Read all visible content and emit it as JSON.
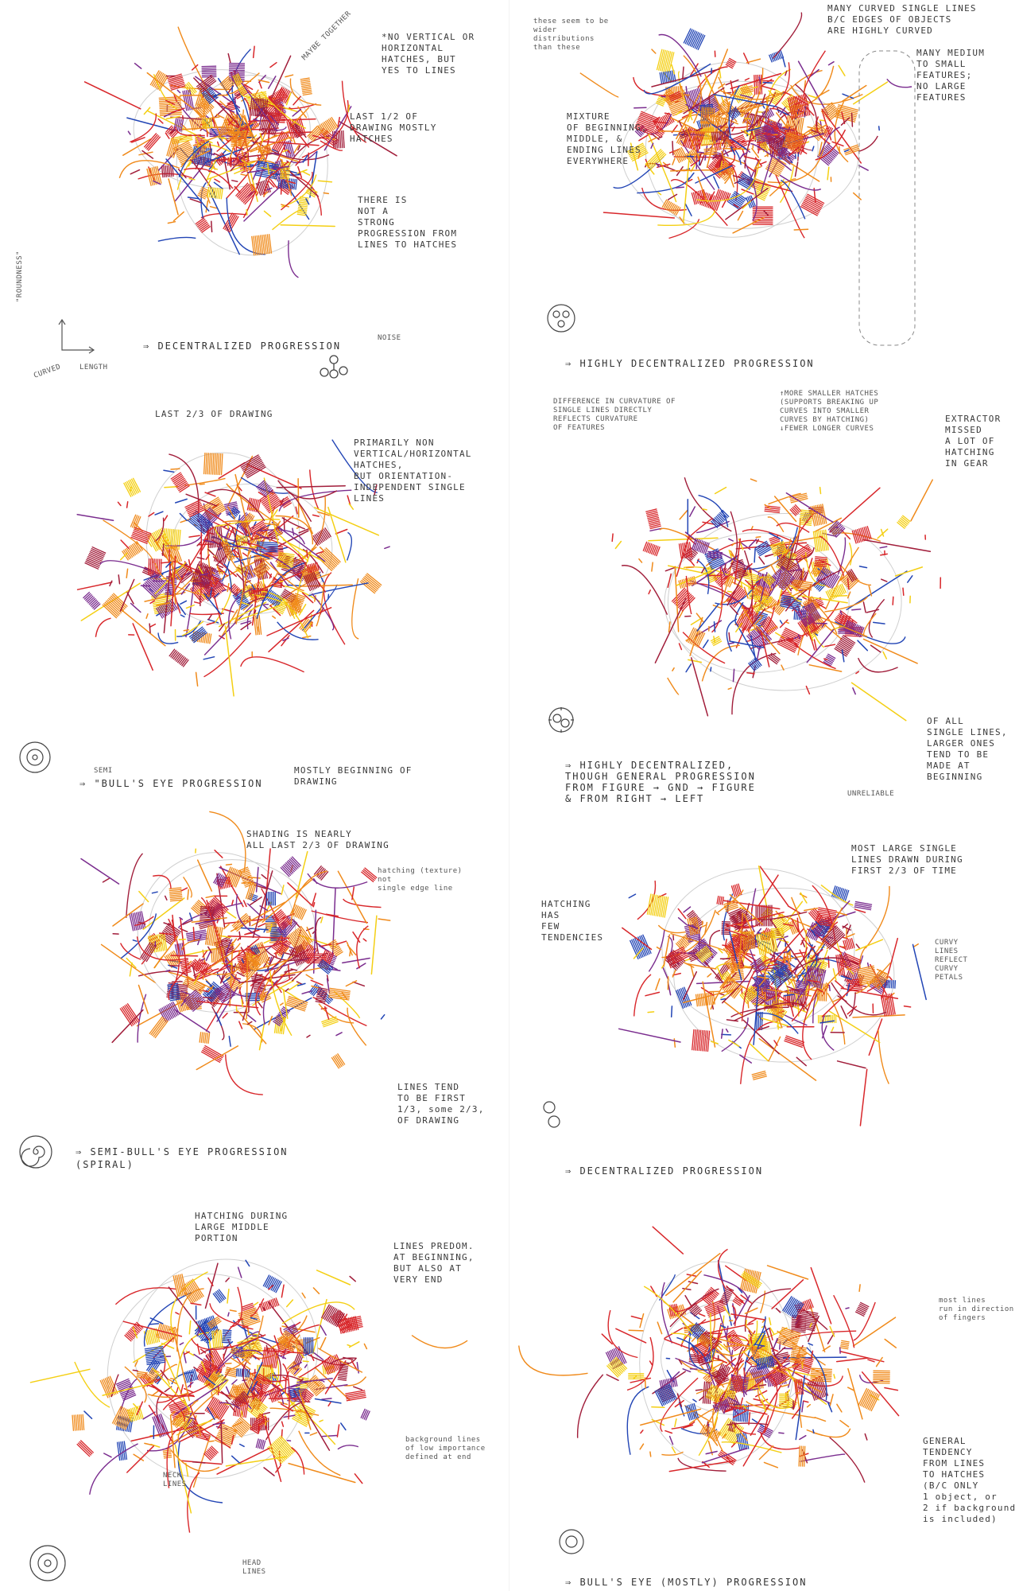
{
  "colors": {
    "red": "#d8262a",
    "yellow": "#f4cf13",
    "orange": "#f08a1a",
    "blue": "#2245b5",
    "purple": "#7a2c8e",
    "darkred": "#a11d3a",
    "pencil": "#8a8a8a"
  },
  "panels": [
    {
      "id": "p1",
      "caption": "⇒ DECENTRALIZED PROGRESSION",
      "notes": [
        "*NO VERTICAL OR\nHORIZONTAL\nHATCHES, BUT\nYES TO LINES",
        "MAYBE TOGETHER",
        "LAST 1/2 OF\nDRAWING MOSTLY\nHATCHES",
        "THERE IS\nNOT A\nSTRONG\nPROGRESSION FROM\nLINES TO HATCHES",
        "NOISE",
        "\"ROUNDNESS\"",
        "LENGTH",
        "CURVED"
      ],
      "glyph": "progression-icon"
    },
    {
      "id": "p2",
      "caption": "⇒ HIGHLY DECENTRALIZED PROGRESSION",
      "notes": [
        "these seem to be\nwider\ndistributions\nthan these",
        "MANY CURVED SINGLE LINES\nB/C EDGES OF OBJECTS\nARE HIGHLY CURVED",
        "MANY MEDIUM\nTO SMALL\nFEATURES;\nNO LARGE\nFEATURES",
        "MIXTURE\nOF BEGINNING,\nMIDDLE, &\nENDING LINES\nEVERYWHERE"
      ],
      "glyph": "cluster-icon"
    },
    {
      "id": "p3",
      "caption": "⇒ \"BULL'S EYE PROGRESSION",
      "notes": [
        "LAST 2/3 OF DRAWING",
        "PRIMARILY NON\nVERTICAL/HORIZONTAL\nHATCHES,\nBUT ORIENTATION-\nINDEPENDENT SINGLE\nLINES",
        "SEMI",
        "MOSTLY BEGINNING OF\nDRAWING"
      ],
      "glyph": "bullseye-icon"
    },
    {
      "id": "p4",
      "caption": "⇒ HIGHLY DECENTRALIZED,\nTHOUGH GENERAL PROGRESSION\nFROM FIGURE → GND → FIGURE\n& FROM RIGHT → LEFT",
      "notes": [
        "DIFFERENCE IN CURVATURE OF\nSINGLE LINES DIRECTLY\nREFLECTS CURVATURE\nOF FEATURES",
        "↑MORE SMALLER HATCHES\n(SUPPORTS BREAKING UP\nCURVES INTO SMALLER\nCURVES BY HATCHING)\n↓FEWER LONGER CURVES",
        "EXTRACTOR\nMISSED\nA LOT OF\nHATCHING\nIN GEAR",
        "OF ALL\nSINGLE LINES,\nLARGER ONES\nTEND TO BE\nMADE AT\nBEGINNING",
        "UNRELIABLE"
      ],
      "glyph": "gear-icon"
    },
    {
      "id": "p5",
      "caption": "⇒ SEMI-BULL'S EYE PROGRESSION\n(SPIRAL)",
      "notes": [
        "SHADING IS NEARLY\nALL LAST 2/3 OF DRAWING",
        "hatching (texture)\nnot\nsingle edge line",
        "LINES TEND\nTO BE FIRST\n1/3, some 2/3,\nOF DRAWING"
      ],
      "glyph": "spiral-icon"
    },
    {
      "id": "p6",
      "caption": "⇒ DECENTRALIZED PROGRESSION",
      "notes": [
        "HATCHING\nHAS\nFEW\nTENDENCIES",
        "MOST LARGE SINGLE\nLINES DRAWN DURING\nFIRST 2/3 OF TIME",
        "CURVY\nLINES\nREFLECT\nCURVY\nPETALS"
      ],
      "glyph": "stack-icon"
    },
    {
      "id": "p7",
      "caption": "",
      "notes": [
        "HATCHING DURING\nLARGE MIDDLE\nPORTION",
        "LINES PREDOM.\nAT BEGINNING,\nBUT ALSO AT\nVERY END",
        "background lines\nof low importance\ndefined at end",
        "NECK\nLINES",
        "HEAD\nLINES"
      ],
      "glyph": "bullseye-icon"
    },
    {
      "id": "p8",
      "caption": "⇒ BULL'S EYE (MOSTLY) PROGRESSION",
      "notes": [
        "most lines\nrun in direction\nof fingers",
        "GENERAL\nTENDENCY\nFROM LINES\nTO HATCHES\n(B/C ONLY\n1 object, or\n2 if background\nis included)"
      ],
      "glyph": "bullseye-icon"
    }
  ]
}
